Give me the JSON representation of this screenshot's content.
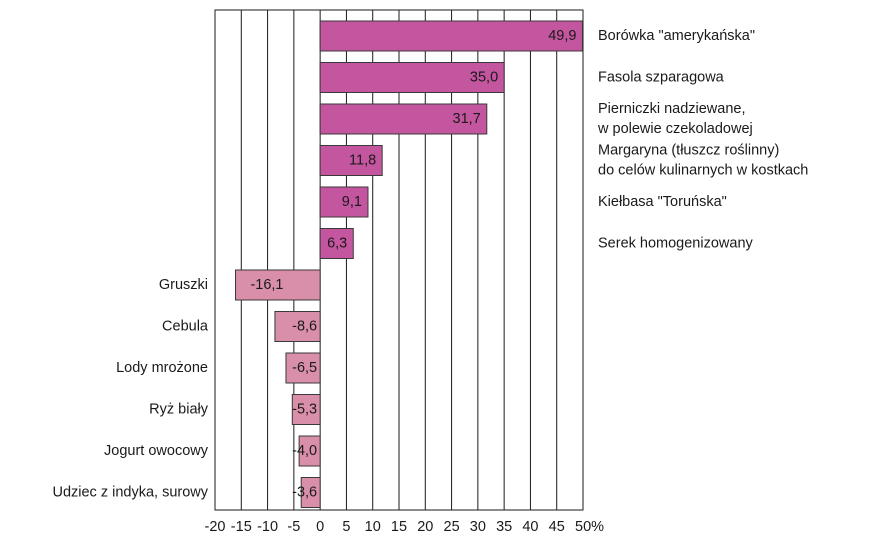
{
  "chart_data": {
    "type": "barh",
    "categories": [
      "Borówka \"amerykańska\"",
      "Fasola szparagowa",
      "Pierniczki nadziewane,\nw polewie czekoladowej",
      "Margaryna (tłuszcz roślinny)\ndo celów kulinarnych w kostkach",
      "Kiełbasa \"Toruńska\"",
      "Serek homogenizowany",
      "Gruszki",
      "Cebula",
      "Lody mrożone",
      "Ryż biały",
      "Jogurt owocowy",
      "Udziec z indyka, surowy"
    ],
    "values": [
      49.9,
      35.0,
      31.7,
      11.8,
      9.1,
      6.3,
      -16.1,
      -8.6,
      -6.5,
      -5.3,
      -4.0,
      -3.6
    ],
    "value_labels": [
      "49,9",
      "35,0",
      "31,7",
      "11,8",
      "9,1",
      "6,3",
      "-16,1",
      "-8,6",
      "-6,5",
      "-5,3",
      "-4,0",
      "-3,6"
    ],
    "colors": [
      "#c4559f",
      "#c4559f",
      "#c4559f",
      "#c4559f",
      "#c4559f",
      "#c4559f",
      "#d98faa",
      "#d98faa",
      "#d98faa",
      "#d98faa",
      "#d98faa",
      "#d98faa"
    ],
    "xlim": [
      -20,
      50
    ],
    "xticks": [
      -20,
      -15,
      -10,
      -5,
      0,
      5,
      10,
      15,
      20,
      25,
      30,
      35,
      40,
      45,
      {
        "value": 50,
        "label": "50%"
      }
    ],
    "grid": true
  }
}
